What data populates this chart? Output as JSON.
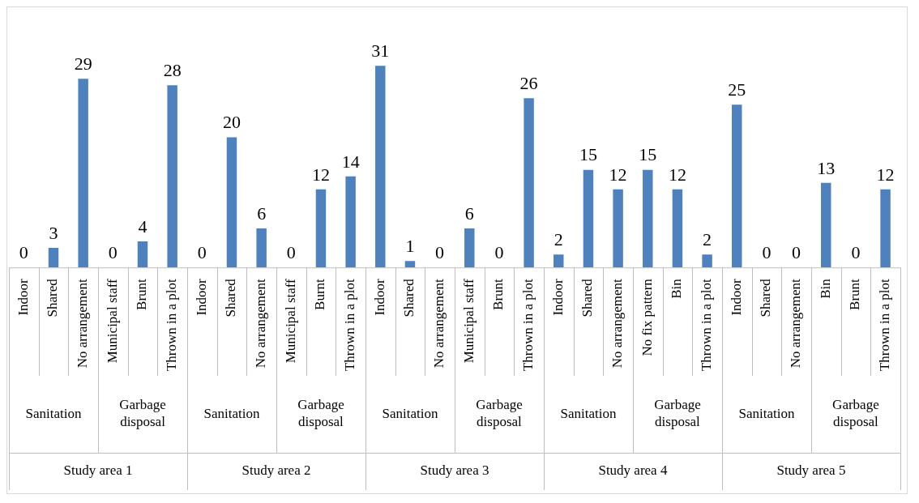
{
  "chart_data": {
    "type": "bar",
    "categories": [
      "Indoor",
      "Shared",
      "No arrangement",
      "Municipal staff",
      "Brunt",
      "Thrown in a plot",
      "Indoor",
      "Shared",
      "No arrangement",
      "Municipal staff",
      "Burnt",
      "Thrown in a plot",
      "Indoor",
      "Shared",
      "No arrangement",
      "Municipal staff",
      "Brunt",
      "Thrown in a plot",
      "Indoor",
      "Shared",
      "No arrangement",
      "No fix pattern",
      "Bin",
      "Thrown in a plot",
      "Indoor",
      "Shared",
      "No arrangement",
      "Bin",
      "Brunt",
      "Thrown in a plot"
    ],
    "values": [
      0,
      3,
      29,
      0,
      4,
      28,
      0,
      20,
      6,
      0,
      12,
      14,
      31,
      1,
      0,
      6,
      0,
      26,
      2,
      15,
      12,
      15,
      12,
      2,
      25,
      0,
      0,
      13,
      0,
      12
    ],
    "color": "#4f81bd",
    "data_labels": true,
    "annotations": [
      "Sanitation",
      "Garbage disposal",
      "Sanitation",
      "Garbage disposal",
      "Sanitation",
      "Garbage disposal",
      "Sanitation",
      "Garbage disposal",
      "Sanitation",
      "Garbage disposal",
      "Study area 1",
      "Study area 2",
      "Study area 3",
      "Study area 4",
      "Study area 5"
    ]
  }
}
